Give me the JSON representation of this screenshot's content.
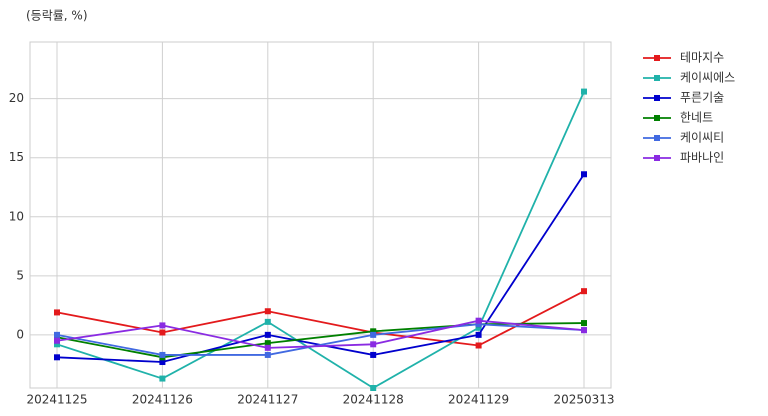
{
  "chart_data": {
    "type": "line",
    "y_label": "(등락률, %)",
    "categories": [
      "20241125",
      "20241126",
      "20241127",
      "20241128",
      "20241129",
      "20250313"
    ],
    "series": [
      {
        "name": "테마지수",
        "color": "#e31a1c",
        "values": [
          1.9,
          0.2,
          2.0,
          0.2,
          -0.9,
          3.7
        ]
      },
      {
        "name": "케이씨에스",
        "color": "#20b2aa",
        "values": [
          -0.8,
          -3.7,
          1.1,
          -4.5,
          0.6,
          20.6
        ]
      },
      {
        "name": "푸른기술",
        "color": "#0000cd",
        "values": [
          -1.9,
          -2.3,
          0.0,
          -1.7,
          0.0,
          13.6
        ]
      },
      {
        "name": "한네트",
        "color": "#008000",
        "values": [
          -0.2,
          -1.9,
          -0.7,
          0.3,
          0.9,
          1.0
        ]
      },
      {
        "name": "케이씨티",
        "color": "#4169e1",
        "values": [
          0.0,
          -1.7,
          -1.7,
          0.0,
          0.9,
          0.4
        ]
      },
      {
        "name": "파바나인",
        "color": "#8a2be2",
        "values": [
          -0.5,
          0.8,
          -1.1,
          -0.8,
          1.2,
          0.4
        ]
      }
    ],
    "ylim": [
      -4.5,
      24.8
    ],
    "yticks": [
      0,
      5,
      10,
      15,
      20
    ],
    "grid": true,
    "legend": "outside-right"
  }
}
